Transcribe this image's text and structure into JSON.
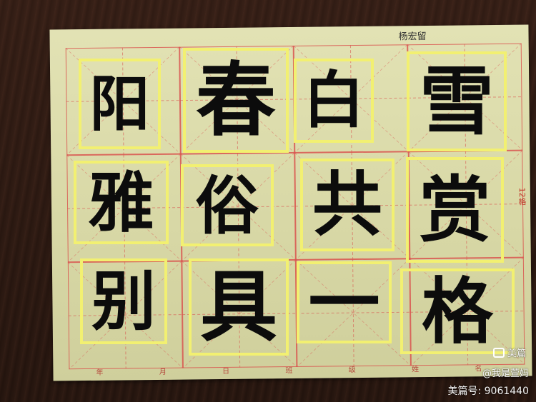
{
  "paper": {
    "writer_name": "杨宏留",
    "side_label": "12格"
  },
  "footer_marks": [
    "年",
    "月",
    "日",
    "班",
    "级",
    "姓",
    "名"
  ],
  "characters": [
    {
      "char": "阳"
    },
    {
      "char": "春"
    },
    {
      "char": "白"
    },
    {
      "char": "雪"
    },
    {
      "char": "雅"
    },
    {
      "char": "俗"
    },
    {
      "char": "共"
    },
    {
      "char": "赏"
    },
    {
      "char": "别"
    },
    {
      "char": "具"
    },
    {
      "char": "一"
    },
    {
      "char": "格"
    }
  ],
  "colors": {
    "highlight": "#f2f071",
    "grid": "#d9534f",
    "ink": "#0c0c0c",
    "paper": "#dcdcaa"
  },
  "watermark": {
    "app": "美篇",
    "user": "@我是萱妈",
    "id": "美篇号: 9061440"
  }
}
